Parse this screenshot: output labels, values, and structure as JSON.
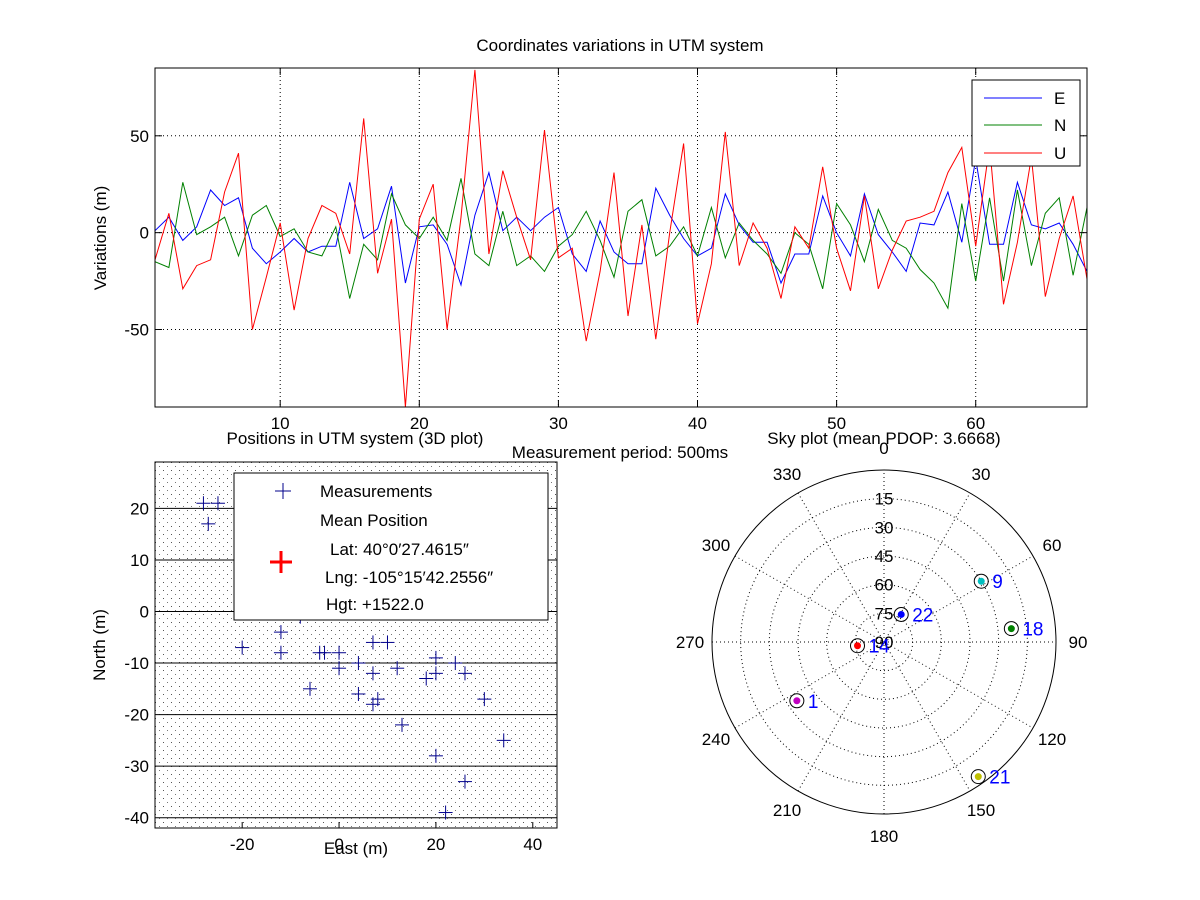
{
  "figure": {
    "background": "#ffffff",
    "colors": {
      "E": "#0000ff",
      "N": "#008000",
      "U": "#ff0000",
      "axes": "#000000",
      "grid": "#000000",
      "text": "#000000",
      "sky_label": "#0000ff"
    }
  },
  "chart_data": [
    {
      "type": "line",
      "title": "Coordinates variations in UTM system",
      "xlabel": "Measurement period: 500ms",
      "ylabel": "Variations (m)",
      "xlim": [
        1,
        68
      ],
      "ylim": [
        -90,
        85
      ],
      "xticks": [
        10,
        20,
        30,
        40,
        50,
        60
      ],
      "yticks": [
        50,
        0,
        -50
      ],
      "grid": true,
      "legend_position": "top-right",
      "legend": [
        "E",
        "N",
        "U"
      ],
      "x": [
        1,
        2,
        3,
        4,
        5,
        6,
        7,
        8,
        9,
        10,
        11,
        12,
        13,
        14,
        15,
        16,
        17,
        18,
        19,
        20,
        21,
        22,
        23,
        24,
        25,
        26,
        27,
        28,
        29,
        30,
        31,
        32,
        33,
        34,
        35,
        36,
        37,
        38,
        39,
        40,
        41,
        42,
        43,
        44,
        45,
        46,
        47,
        48,
        49,
        50,
        51,
        52,
        53,
        54,
        55,
        56,
        57,
        58,
        59,
        60,
        61,
        62,
        63,
        64,
        65,
        66,
        67,
        68
      ],
      "series": [
        {
          "name": "E",
          "color": "#0000ff",
          "values": [
            1,
            8,
            -4,
            3,
            22,
            14,
            18,
            -8,
            -16,
            -10,
            -3,
            -10,
            -7,
            -7,
            26,
            -3,
            2,
            24,
            -26,
            3,
            4,
            -6,
            -27,
            9,
            31,
            1,
            8,
            1,
            8,
            13,
            -11,
            -20,
            6,
            -10,
            -16,
            -16,
            23,
            9,
            -3,
            -12,
            -8,
            20,
            4,
            -5,
            -5,
            -26,
            -11,
            -11,
            19,
            0,
            -12,
            20,
            -1,
            -10,
            -20,
            5,
            4,
            21,
            -5,
            38,
            -6,
            -6,
            26,
            4,
            2,
            5,
            -6,
            -20
          ]
        },
        {
          "name": "N",
          "color": "#008000",
          "values": [
            -15,
            -18,
            26,
            -1,
            3,
            8,
            -12,
            9,
            14,
            -2,
            2,
            -10,
            -12,
            3,
            -34,
            -6,
            -14,
            20,
            4,
            -3,
            8,
            -4,
            28,
            -11,
            -17,
            11,
            -17,
            -12,
            -20,
            -7,
            -1,
            11,
            -4,
            -23,
            11,
            17,
            -12,
            -7,
            3,
            -12,
            13,
            -13,
            5,
            -4,
            -11,
            -21,
            0,
            -6,
            -29,
            15,
            4,
            -15,
            12,
            -4,
            -8,
            -19,
            -26,
            -39,
            15,
            -25,
            18,
            -25,
            22,
            -17,
            10,
            18,
            -22,
            13
          ]
        },
        {
          "name": "U",
          "color": "#ff0000",
          "values": [
            -14,
            10,
            -29,
            -17,
            -14,
            21,
            41,
            -50,
            -23,
            5,
            -40,
            -3,
            14,
            10,
            -11,
            59,
            -21,
            7,
            -90,
            7,
            25,
            -50,
            8,
            84,
            -11,
            32,
            8,
            -14,
            53,
            -13,
            -8,
            -56,
            -20,
            31,
            -43,
            4,
            -55,
            0,
            46,
            -47,
            -16,
            52,
            -17,
            5,
            -8,
            -34,
            3,
            -8,
            34,
            -8,
            -30,
            19,
            -29,
            -9,
            6,
            8,
            11,
            31,
            44,
            -7,
            45,
            -37,
            -5,
            39,
            -33,
            -3,
            19,
            -24
          ]
        }
      ]
    },
    {
      "type": "scatter",
      "title": "Positions in UTM system (3D plot)",
      "xlabel": "East (m)",
      "ylabel": "North (m)",
      "xlim": [
        -38,
        45
      ],
      "ylim": [
        -42,
        29
      ],
      "xticks": [
        -20,
        0,
        20,
        40
      ],
      "yticks": [
        20,
        10,
        0,
        -10,
        -20,
        -30,
        -40
      ],
      "grid": true,
      "series": [
        {
          "name": "Measurements",
          "color": "#00008b",
          "marker": "+",
          "points": [
            [
              -28,
              21
            ],
            [
              -25,
              21
            ],
            [
              -27,
              17
            ],
            [
              -20,
              -7
            ],
            [
              -12,
              -4
            ],
            [
              -12,
              -8
            ],
            [
              -8,
              -1
            ],
            [
              -6,
              -15
            ],
            [
              -4,
              -8
            ],
            [
              -3,
              -8
            ],
            [
              0,
              -8
            ],
            [
              0,
              -11
            ],
            [
              4,
              -10
            ],
            [
              4,
              -16
            ],
            [
              7,
              -6
            ],
            [
              7,
              -12
            ],
            [
              7,
              -18
            ],
            [
              8,
              -17
            ],
            [
              10,
              -6
            ],
            [
              12,
              -11
            ],
            [
              13,
              -22
            ],
            [
              18,
              -13
            ],
            [
              20,
              -9
            ],
            [
              20,
              -12
            ],
            [
              20,
              -28
            ],
            [
              22,
              -39
            ],
            [
              24,
              -10
            ],
            [
              26,
              -12
            ],
            [
              26,
              -33
            ],
            [
              30,
              -17
            ],
            [
              34,
              -25
            ]
          ]
        },
        {
          "name": "Mean Position",
          "color": "#ff0000",
          "marker": "+",
          "points": [
            [
              0,
              0
            ]
          ]
        }
      ],
      "legend": {
        "items": [
          "Measurements",
          "Mean Position"
        ],
        "lat": "Lat: 40°0′27.4615″",
        "lng": "Lng: -105°15′42.2556″",
        "hgt": "Hgt: +1522.0"
      }
    },
    {
      "type": "scatter",
      "subtype": "polar-skyplot",
      "title": "Sky plot (mean PDOP: 3.6668)",
      "azimuth_labels": [
        "0",
        "30",
        "60",
        "90",
        "120",
        "150",
        "180",
        "210",
        "240",
        "270",
        "300",
        "330"
      ],
      "elevation_labels": [
        "15",
        "30",
        "45",
        "60",
        "75",
        "90"
      ],
      "satellites": [
        {
          "prn": "9",
          "azimuth": 58,
          "elevation": 30,
          "color": "#00bfbf"
        },
        {
          "prn": "22",
          "azimuth": 32,
          "elevation": 73,
          "color": "#0000ff"
        },
        {
          "prn": "18",
          "azimuth": 84,
          "elevation": 23,
          "color": "#008000"
        },
        {
          "prn": "14",
          "azimuth": 262,
          "elevation": 76,
          "color": "#ff0000"
        },
        {
          "prn": "1",
          "azimuth": 236,
          "elevation": 35,
          "color": "#bf00bf"
        },
        {
          "prn": "21",
          "azimuth": 145,
          "elevation": 4,
          "color": "#bfbf00"
        }
      ]
    }
  ]
}
